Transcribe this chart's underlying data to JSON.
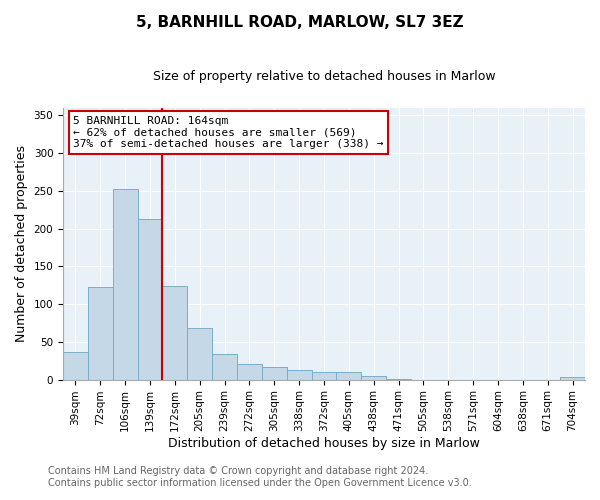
{
  "title": "5, BARNHILL ROAD, MARLOW, SL7 3EZ",
  "subtitle": "Size of property relative to detached houses in Marlow",
  "xlabel": "Distribution of detached houses by size in Marlow",
  "ylabel": "Number of detached properties",
  "categories": [
    "39sqm",
    "72sqm",
    "106sqm",
    "139sqm",
    "172sqm",
    "205sqm",
    "239sqm",
    "272sqm",
    "305sqm",
    "338sqm",
    "372sqm",
    "405sqm",
    "438sqm",
    "471sqm",
    "505sqm",
    "538sqm",
    "571sqm",
    "604sqm",
    "638sqm",
    "671sqm",
    "704sqm"
  ],
  "values": [
    37,
    122,
    252,
    213,
    124,
    68,
    34,
    21,
    17,
    13,
    10,
    10,
    5,
    1,
    0,
    0,
    0,
    0,
    0,
    0,
    3
  ],
  "bar_color": "#c5d8e8",
  "bar_edge_color": "#7aaec8",
  "vline_color": "#cc0000",
  "annotation_text": "5 BARNHILL ROAD: 164sqm\n← 62% of detached houses are smaller (569)\n37% of semi-detached houses are larger (338) →",
  "annotation_box_color": "#ffffff",
  "annotation_box_edge_color": "#cc0000",
  "ylim": [
    0,
    360
  ],
  "yticks": [
    0,
    50,
    100,
    150,
    200,
    250,
    300,
    350
  ],
  "footer_line1": "Contains HM Land Registry data © Crown copyright and database right 2024.",
  "footer_line2": "Contains public sector information licensed under the Open Government Licence v3.0.",
  "background_color": "#ffffff",
  "plot_background_color": "#e8f0f8",
  "title_fontsize": 11,
  "subtitle_fontsize": 9,
  "footer_fontsize": 7,
  "annotation_fontsize": 8,
  "axis_label_fontsize": 9,
  "tick_fontsize": 7.5
}
